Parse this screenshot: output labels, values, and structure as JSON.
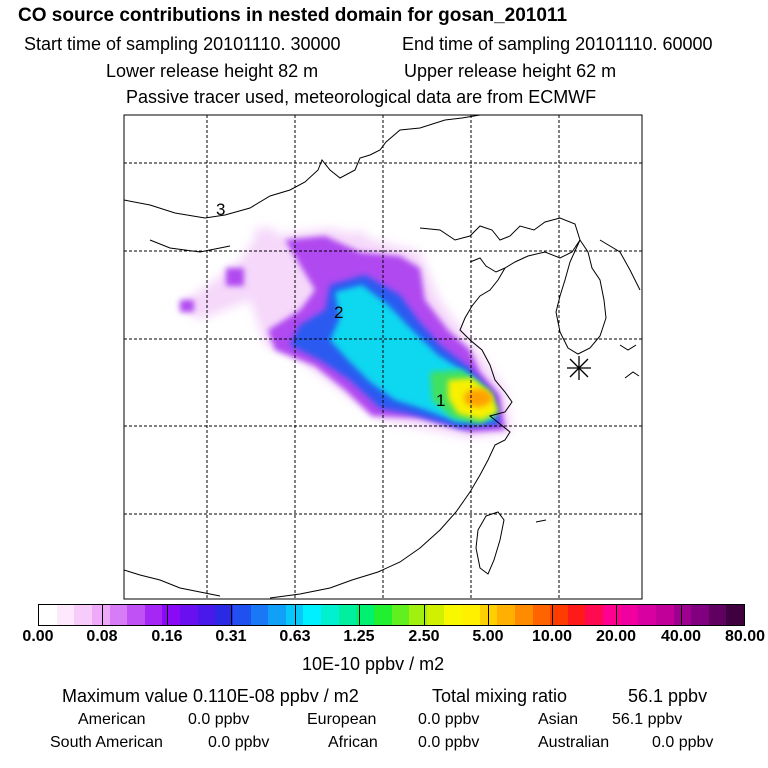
{
  "header": {
    "title": "CO  source contributions in nested domain for gosan_201011",
    "start_label": "Start time of sampling 20101110. 30000",
    "end_label": "End time of sampling 20101110. 60000",
    "lower_release": "Lower release height   82 m",
    "upper_release": "Upper release height   62 m",
    "tracer_note": "Passive tracer used, meteorological data are from ECMWF"
  },
  "map": {
    "region_labels": [
      "1",
      "2",
      "3"
    ],
    "receptor_marker": "station-star"
  },
  "colorbar": {
    "unit": "10E-10 ppbv / m2",
    "ticks": [
      "0.00",
      "0.08",
      "0.16",
      "0.31",
      "0.63",
      "1.25",
      "2.50",
      "5.00",
      "10.00",
      "20.00",
      "40.00",
      "80.00"
    ],
    "colors": [
      "#ffffff",
      "#fde8fd",
      "#f8ccfa",
      "#eeaaf8",
      "#d67cf6",
      "#c052f5",
      "#a526f5",
      "#8a0af5",
      "#6a10f0",
      "#4a18ea",
      "#2a2ae4",
      "#2050f0",
      "#1878f5",
      "#10a0f8",
      "#08c8fa",
      "#00f0ff",
      "#00f0d0",
      "#00f0a0",
      "#00f070",
      "#20f030",
      "#60f020",
      "#a0f010",
      "#d0f000",
      "#f8f800",
      "#fff000",
      "#ffd000",
      "#ffb000",
      "#ff8c00",
      "#ff6400",
      "#ff3c00",
      "#ff1a1a",
      "#ff0a50",
      "#ff0090",
      "#f000a0",
      "#d800a0",
      "#c00098",
      "#a00090",
      "#800080",
      "#600060",
      "#400040"
    ]
  },
  "stats": {
    "max_label": "Maximum value  0.110E-08 ppbv / m2",
    "total_label": "Total mixing ratio",
    "total_value": "56.1 ppbv",
    "row1": [
      {
        "name": "American",
        "value": "0.0 ppbv"
      },
      {
        "name": "European",
        "value": "0.0 ppbv"
      },
      {
        "name": "Asian",
        "value": "56.1 ppbv"
      }
    ],
    "row2": [
      {
        "name": "South American",
        "value": "0.0 ppbv"
      },
      {
        "name": "African",
        "value": "0.0 ppbv"
      },
      {
        "name": "Australian",
        "value": "0.0 ppbv"
      }
    ]
  }
}
